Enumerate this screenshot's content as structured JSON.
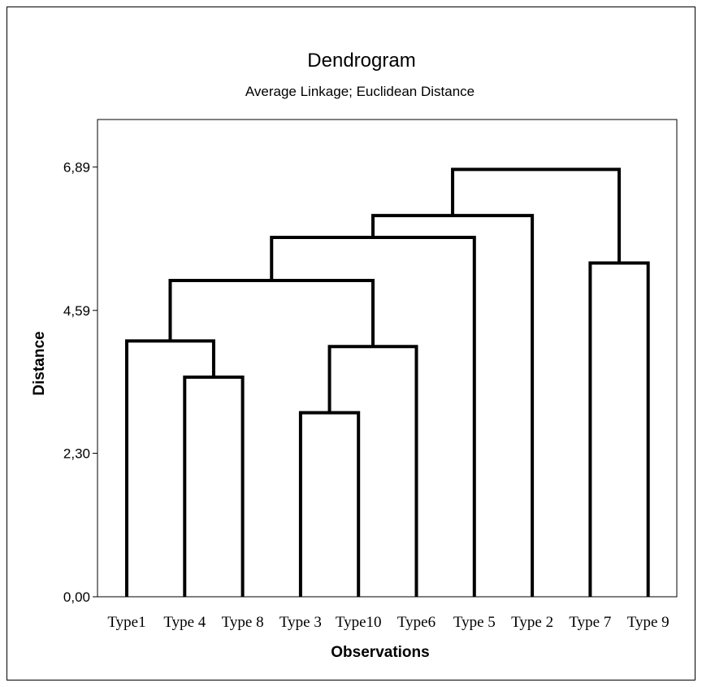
{
  "chart_data": {
    "type": "dendrogram",
    "title": "Dendrogram",
    "subtitle": "Average Linkage; Euclidean Distance",
    "xlabel": "Observations",
    "ylabel": "Distance",
    "ylim": [
      0,
      7.65
    ],
    "yticks": [
      {
        "value": 0.0,
        "label": "0,00"
      },
      {
        "value": 2.3,
        "label": "2,30"
      },
      {
        "value": 4.59,
        "label": "4,59"
      },
      {
        "value": 6.89,
        "label": "6,89"
      }
    ],
    "leaves": [
      "Type1",
      "Type 4",
      "Type 8",
      "Type 3",
      "Type10",
      "Type6",
      "Type 5",
      "Type 2",
      "Type 7",
      "Type 9"
    ],
    "merges": [
      {
        "left": "leaf:1",
        "right": "leaf:2",
        "height": 3.52
      },
      {
        "left": "leaf:3",
        "right": "leaf:4",
        "height": 2.95
      },
      {
        "left": "leaf:0",
        "right": "merge:0",
        "height": 4.1
      },
      {
        "left": "merge:1",
        "right": "leaf:5",
        "height": 4.01
      },
      {
        "left": "merge:2",
        "right": "merge:3",
        "height": 5.07
      },
      {
        "left": "merge:4",
        "right": "leaf:6",
        "height": 5.76
      },
      {
        "left": "merge:5",
        "right": "leaf:7",
        "height": 6.11
      },
      {
        "left": "leaf:8",
        "right": "leaf:9",
        "height": 5.35
      },
      {
        "left": "merge:6",
        "right": "merge:7",
        "height": 6.85
      }
    ],
    "grid": false,
    "color": "#000000"
  }
}
